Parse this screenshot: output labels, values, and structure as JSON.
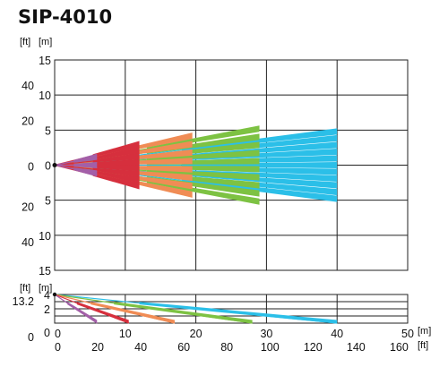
{
  "title": "SIP-4010",
  "chart_data": [
    {
      "type": "line",
      "name": "top-view",
      "units": {
        "ft": "[ft]",
        "m": "[m]"
      },
      "x_range_m": [
        0,
        50
      ],
      "x_grid_m": [
        0,
        10,
        20,
        30,
        40
      ],
      "y_range_m": [
        -15,
        15
      ],
      "y_ticks_m": [
        {
          "v": 15,
          "m": "15",
          "ft": ""
        },
        {
          "v": 10,
          "m": "10",
          "ft": "40"
        },
        {
          "v": 5,
          "m": "5",
          "ft": "20"
        },
        {
          "v": 0,
          "m": "0",
          "ft": "0"
        },
        {
          "v": -5,
          "m": "5",
          "ft": "20"
        },
        {
          "v": -10,
          "m": "10",
          "ft": "40"
        },
        {
          "v": -15,
          "m": "15",
          "ft": ""
        }
      ],
      "zones": [
        {
          "color": "#2bbfe8",
          "range_m": 40,
          "spread_m": [
            -4.8,
            4.8
          ],
          "beams": 11
        },
        {
          "color": "#7dc243",
          "range_m": 29,
          "spread_m": [
            -5.2,
            5.2
          ],
          "beams": 10
        },
        {
          "color": "#f08c55",
          "range_m": 19.5,
          "spread_m": [
            -4.2,
            4.2
          ],
          "beams": 8
        },
        {
          "color": "#d62f3d",
          "range_m": 12,
          "spread_m": [
            -3,
            3
          ],
          "beams": 8
        },
        {
          "color": "#a35fa8",
          "range_m": 6,
          "spread_m": [
            -1.2,
            1.2
          ],
          "beams": 3
        }
      ]
    },
    {
      "type": "line",
      "name": "side-view",
      "units": {
        "ft": "[ft]",
        "m": "[m]"
      },
      "y_range_m": [
        0,
        4
      ],
      "y_ticks_m": [
        {
          "v": 4,
          "m": "4",
          "ft": "13.2"
        },
        {
          "v": 2,
          "m": "2",
          "ft": ""
        },
        {
          "v": 0,
          "m": "0",
          "ft": "0"
        }
      ],
      "mount_height_m": 4,
      "zones": [
        {
          "color": "#2bbfe8",
          "range_m": 40
        },
        {
          "color": "#7dc243",
          "range_m": 28
        },
        {
          "color": "#f08c55",
          "range_m": 17
        },
        {
          "color": "#d62f3d",
          "range_m": 10.5
        },
        {
          "color": "#a35fa8",
          "range_m": 6
        }
      ],
      "x_ticks_m": [
        "0",
        "10",
        "20",
        "30",
        "40",
        "50"
      ],
      "x_ticks_ft": [
        "0",
        "20",
        "40",
        "60",
        "80",
        "100",
        "120",
        "140",
        "160"
      ],
      "x_unit_m": "[m]",
      "x_unit_ft": "[ft]"
    }
  ]
}
